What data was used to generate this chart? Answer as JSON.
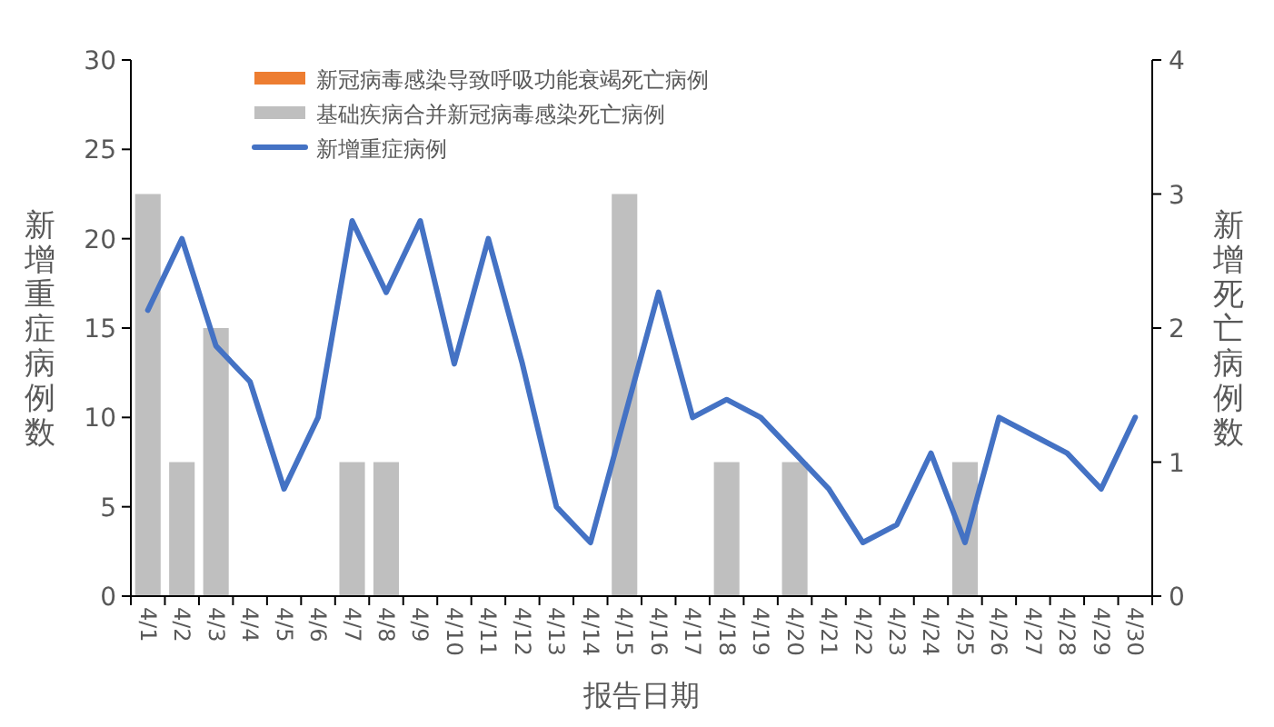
{
  "chart_data": {
    "type": "bar",
    "xlabel": "报告日期",
    "ylabel": "新增重症病例数",
    "y2label": "新增死亡病例数",
    "categories": [
      "4/1",
      "4/2",
      "4/3",
      "4/4",
      "4/5",
      "4/6",
      "4/7",
      "4/8",
      "4/9",
      "4/10",
      "4/11",
      "4/12",
      "4/13",
      "4/14",
      "4/15",
      "4/16",
      "4/17",
      "4/18",
      "4/19",
      "4/20",
      "4/21",
      "4/22",
      "4/23",
      "4/24",
      "4/25",
      "4/26",
      "4/27",
      "4/28",
      "4/29",
      "4/30"
    ],
    "stacked": true,
    "series": [
      {
        "name": "新冠病毒感染导致呼吸功能衰竭死亡病例",
        "axis": "y2",
        "color": "#ed7d31",
        "values": [
          0,
          0,
          0,
          0,
          0,
          0,
          0,
          0,
          0,
          0,
          0,
          0,
          0,
          0,
          0,
          0,
          0,
          0,
          0,
          0,
          0,
          0,
          0,
          0,
          0,
          0,
          0,
          0,
          0,
          0
        ]
      },
      {
        "name": "基础疾病合并新冠病毒感染死亡病例",
        "axis": "y2",
        "color": "#bfbfbf",
        "values": [
          3,
          1,
          2,
          0,
          0,
          0,
          1,
          1,
          0,
          0,
          0,
          0,
          0,
          0,
          3,
          0,
          0,
          1,
          0,
          1,
          0,
          0,
          0,
          0,
          1,
          0,
          0,
          0,
          0,
          0
        ]
      },
      {
        "name": "新增重症病例",
        "type": "line",
        "color": "#4472c4",
        "values": [
          16,
          20,
          14,
          12,
          6,
          10,
          21,
          17,
          21,
          13,
          20,
          13,
          5,
          3,
          10,
          17,
          10,
          11,
          10,
          8,
          6,
          3,
          4,
          8,
          3,
          10,
          9,
          8,
          6,
          10
        ]
      }
    ],
    "ylim": [
      0,
      30
    ],
    "yticks": [
      0,
      5,
      10,
      15,
      20,
      25,
      30
    ],
    "y2lim": [
      0,
      4
    ],
    "y2ticks": [
      0,
      1,
      2,
      3,
      4
    ],
    "legend": "top",
    "grid": false,
    "marker": "none",
    "line_style": "solid"
  }
}
